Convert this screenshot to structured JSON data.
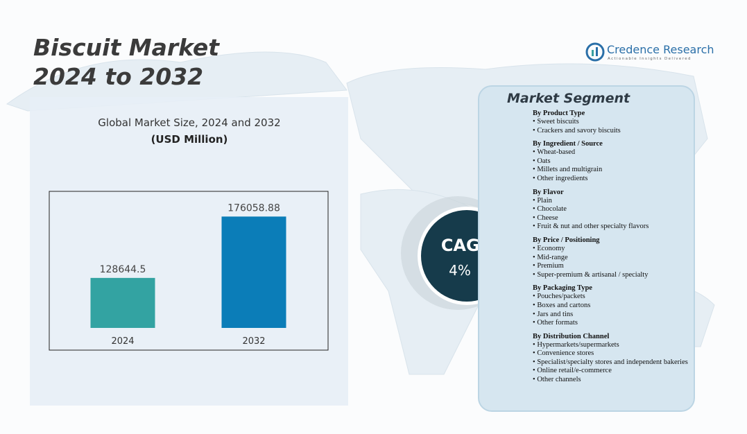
{
  "header": {
    "title_line1": "Biscuit Market",
    "title_line2": "2024 to 2032"
  },
  "logo": {
    "name": "Credence Research",
    "tagline": "Actionable Insights Delivered"
  },
  "chart_data": {
    "type": "bar",
    "title": "Global Market Size, 2024 and 2032",
    "subtitle": "(USD Million)",
    "categories": [
      "2024",
      "2032"
    ],
    "values": [
      128644.5,
      176058.88
    ],
    "colors": [
      "#33a3a2",
      "#0b7db8"
    ],
    "ylim": [
      90000,
      180000
    ]
  },
  "cagr": {
    "label": "CAGR",
    "value": "4%"
  },
  "segments": {
    "title": "Market Segment",
    "groups": [
      {
        "heading": "By Product Type",
        "items": [
          "Sweet biscuits",
          "Crackers and savory biscuits"
        ]
      },
      {
        "heading": "By Ingredient / Source",
        "items": [
          "Wheat-based",
          "Oats",
          "Millets and multigrain",
          "Other ingredients"
        ]
      },
      {
        "heading": "By Flavor",
        "items": [
          "Plain",
          "Chocolate",
          "Cheese",
          "Fruit & nut and other specialty flavors"
        ]
      },
      {
        "heading": "By Price / Positioning",
        "items": [
          "Economy",
          "Mid-range",
          "Premium",
          "Super-premium & artisanal / specialty"
        ]
      },
      {
        "heading": "By Packaging Type",
        "items": [
          "Pouches/packets",
          "Boxes and cartons",
          "Jars and tins",
          "Other formats"
        ]
      },
      {
        "heading": "By Distribution Channel",
        "items": [
          "Hypermarkets/supermarkets",
          "Convenience stores",
          "Specialist/specialty stores and independent bakeries",
          "Online retail/e-commerce",
          "Other channels"
        ]
      }
    ]
  }
}
